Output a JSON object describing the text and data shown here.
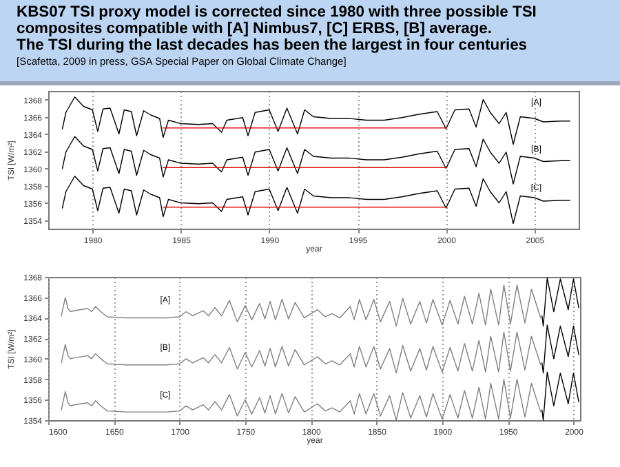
{
  "chart_data": [
    {
      "type": "line",
      "title": "KBS07 TSI proxy model is corrected since 1980 with three possible TSI composites compatible with [A] Nimbus7, [C] ERBS, [B] average.",
      "subtitle": "The TSI during the last decades has been the largest in four centuries",
      "xlabel": "year",
      "ylabel": "TSI [W/m²]",
      "annotations": [
        "[Scafetta, 2009 in press, GSA Special Paper on Global Climate Change]",
        "[A]",
        "[B]",
        "[C]"
      ],
      "xlim": [
        1977.5,
        2007.5
      ],
      "xticks": [
        1980,
        1985,
        1990,
        1995,
        2000,
        2005
      ],
      "ylim": [
        1353,
        1369
      ],
      "yticks": [
        1354,
        1356,
        1358,
        1360,
        1362,
        1364,
        1366,
        1368
      ],
      "grid": "x",
      "x": [
        1978.3,
        1978.5,
        1979.0,
        1979.5,
        1980.0,
        1980.3,
        1980.6,
        1981.0,
        1981.5,
        1981.8,
        1982.2,
        1982.5,
        1982.9,
        1983.3,
        1983.8,
        1984.0,
        1984.3,
        1985.0,
        1986.0,
        1986.8,
        1987.3,
        1987.6,
        1988.5,
        1988.8,
        1989.2,
        1990.0,
        1990.5,
        1991.0,
        1991.6,
        1992.0,
        1992.5,
        1993.5,
        1994.5,
        1995.5,
        1996.5,
        1997.5,
        1998.5,
        1999.5,
        2000.0,
        2000.5,
        2001.3,
        2001.7,
        2002.1,
        2002.5,
        2003.0,
        2003.4,
        2003.8,
        2004.2,
        2005.0,
        2005.5,
        2006.5,
        2007.0
      ],
      "series": [
        {
          "color": "#000000",
          "values": [
            1364.6,
            1366.5,
            1368.3,
            1367.2,
            1366.8,
            1364.3,
            1366.9,
            1367.0,
            1364.0,
            1366.8,
            1366.6,
            1363.8,
            1366.7,
            1366.2,
            1365.8,
            1363.6,
            1365.6,
            1365.2,
            1365.1,
            1365.2,
            1364.2,
            1365.6,
            1365.9,
            1363.8,
            1366.5,
            1366.8,
            1364.3,
            1367.0,
            1364.0,
            1366.8,
            1366.0,
            1365.8,
            1365.8,
            1365.6,
            1365.6,
            1365.9,
            1366.3,
            1366.6,
            1364.6,
            1366.8,
            1366.9,
            1364.8,
            1368.0,
            1366.5,
            1365.2,
            1366.5,
            1362.8,
            1366.0,
            1365.8,
            1365.4,
            1365.5,
            1365.5
          ]
        },
        {
          "color": "#000000",
          "values": [
            1360.0,
            1361.9,
            1363.7,
            1362.6,
            1362.2,
            1359.7,
            1362.3,
            1362.4,
            1359.4,
            1362.2,
            1362.0,
            1359.2,
            1362.1,
            1361.6,
            1361.2,
            1359.0,
            1361.0,
            1360.6,
            1360.5,
            1360.6,
            1359.6,
            1361.0,
            1361.3,
            1359.2,
            1361.9,
            1362.2,
            1359.7,
            1362.4,
            1359.4,
            1362.2,
            1361.4,
            1361.2,
            1361.2,
            1361.0,
            1361.0,
            1361.3,
            1361.7,
            1362.0,
            1360.0,
            1362.2,
            1362.3,
            1360.2,
            1363.4,
            1361.9,
            1360.6,
            1361.9,
            1358.2,
            1361.4,
            1361.2,
            1360.8,
            1360.9,
            1360.9
          ]
        },
        {
          "color": "#000000",
          "values": [
            1355.4,
            1357.3,
            1359.1,
            1358.0,
            1357.6,
            1355.1,
            1357.7,
            1357.8,
            1354.8,
            1357.6,
            1357.4,
            1354.6,
            1357.5,
            1357.0,
            1356.6,
            1354.4,
            1356.4,
            1356.0,
            1355.9,
            1356.0,
            1355.0,
            1356.4,
            1356.7,
            1354.6,
            1357.3,
            1357.6,
            1355.1,
            1357.8,
            1354.8,
            1357.6,
            1356.8,
            1356.6,
            1356.6,
            1356.4,
            1356.4,
            1356.7,
            1357.1,
            1357.4,
            1355.4,
            1357.6,
            1357.7,
            1355.6,
            1358.8,
            1357.3,
            1356.0,
            1357.3,
            1353.6,
            1356.8,
            1356.6,
            1356.2,
            1356.3,
            1356.3
          ]
        },
        {
          "color": "#e01010",
          "x": [
            1984,
            2000
          ],
          "values": [
            1364.7,
            1364.7
          ]
        },
        {
          "color": "#e01010",
          "x": [
            1984,
            2000
          ],
          "values": [
            1360.1,
            1360.1
          ]
        },
        {
          "color": "#e01010",
          "x": [
            1984,
            2000
          ],
          "values": [
            1355.5,
            1355.5
          ]
        }
      ]
    },
    {
      "type": "line",
      "xlabel": "year",
      "ylabel": "TSI [W/m²]",
      "annotations": [
        "[A]",
        "[B]",
        "[C]"
      ],
      "xlim": [
        1600,
        2005
      ],
      "xticks": [
        1600,
        1650,
        1700,
        1750,
        1800,
        1850,
        1900,
        1950,
        2000
      ],
      "ylim": [
        1354,
        1368
      ],
      "yticks": [
        1354,
        1356,
        1358,
        1360,
        1362,
        1364,
        1366,
        1368
      ],
      "grid": "x",
      "x": [
        1610,
        1611,
        1613,
        1615,
        1617,
        1620,
        1625,
        1630,
        1633,
        1636,
        1640,
        1645,
        1660,
        1690,
        1700,
        1705,
        1710,
        1718,
        1722,
        1727,
        1732,
        1738,
        1744,
        1750,
        1755,
        1761,
        1765,
        1769,
        1773,
        1778,
        1783,
        1788,
        1795,
        1805,
        1811,
        1816,
        1822,
        1830,
        1833,
        1837,
        1842,
        1848,
        1853,
        1860,
        1865,
        1870,
        1876,
        1883,
        1888,
        1893,
        1900,
        1906,
        1912,
        1917,
        1923,
        1928,
        1933,
        1937,
        1943,
        1947,
        1952,
        1957,
        1963,
        1968,
        1975
      ],
      "series": [
        {
          "color": "#808080",
          "values": [
            1364.2,
            1364.8,
            1366.0,
            1364.9,
            1364.6,
            1364.7,
            1364.8,
            1364.9,
            1364.6,
            1365.1,
            1364.6,
            1364.1,
            1364.0,
            1364.0,
            1364.1,
            1364.6,
            1364.2,
            1364.7,
            1364.2,
            1365.0,
            1364.2,
            1365.7,
            1363.6,
            1365.2,
            1363.8,
            1365.4,
            1363.9,
            1365.6,
            1363.8,
            1365.8,
            1363.9,
            1365.5,
            1364.0,
            1364.8,
            1364.1,
            1364.4,
            1364.0,
            1365.1,
            1363.8,
            1365.8,
            1363.8,
            1365.8,
            1363.6,
            1365.6,
            1363.2,
            1365.9,
            1363.4,
            1365.6,
            1363.5,
            1365.8,
            1363.3,
            1365.7,
            1363.4,
            1366.1,
            1363.4,
            1366.4,
            1363.3,
            1366.8,
            1363.3,
            1367.2,
            1363.4,
            1367.2,
            1363.5,
            1366.8,
            1364.0
          ]
        },
        {
          "color": "#808080",
          "values": [
            1359.6,
            1360.2,
            1361.4,
            1360.3,
            1360.0,
            1360.1,
            1360.2,
            1360.3,
            1360.0,
            1360.5,
            1360.0,
            1359.5,
            1359.4,
            1359.4,
            1359.5,
            1360.0,
            1359.6,
            1360.1,
            1359.6,
            1360.4,
            1359.6,
            1361.1,
            1359.0,
            1360.6,
            1359.2,
            1360.8,
            1359.3,
            1361.0,
            1359.2,
            1361.2,
            1359.3,
            1360.9,
            1359.4,
            1360.2,
            1359.5,
            1359.8,
            1359.4,
            1360.5,
            1359.2,
            1361.2,
            1359.2,
            1361.2,
            1359.0,
            1361.0,
            1358.6,
            1361.3,
            1358.8,
            1361.0,
            1358.9,
            1361.2,
            1358.7,
            1361.1,
            1358.8,
            1361.5,
            1358.8,
            1361.8,
            1358.7,
            1362.2,
            1358.7,
            1362.6,
            1358.8,
            1362.6,
            1358.9,
            1362.2,
            1359.4
          ]
        },
        {
          "color": "#808080",
          "values": [
            1355.0,
            1355.6,
            1356.8,
            1355.7,
            1355.4,
            1355.5,
            1355.6,
            1355.7,
            1355.4,
            1355.9,
            1355.4,
            1354.9,
            1354.8,
            1354.8,
            1354.9,
            1355.4,
            1355.0,
            1355.5,
            1355.0,
            1355.8,
            1355.0,
            1356.5,
            1354.4,
            1356.0,
            1354.6,
            1356.2,
            1354.7,
            1356.4,
            1354.6,
            1356.6,
            1354.7,
            1356.3,
            1354.8,
            1355.6,
            1354.9,
            1355.2,
            1354.8,
            1355.9,
            1354.6,
            1356.6,
            1354.6,
            1356.6,
            1354.4,
            1356.4,
            1354.0,
            1356.7,
            1354.2,
            1356.4,
            1354.3,
            1356.6,
            1354.1,
            1356.5,
            1354.2,
            1356.9,
            1354.2,
            1357.2,
            1354.1,
            1357.6,
            1354.1,
            1358.0,
            1354.2,
            1358.0,
            1354.3,
            1357.6,
            1354.8
          ]
        },
        {
          "color": "#000000",
          "x": [
            1976,
            1977,
            1980,
            1985,
            1990,
            1996,
            2000,
            2004
          ],
          "values": [
            1364.2,
            1363.2,
            1367.9,
            1364.6,
            1367.8,
            1364.8,
            1367.8,
            1365.0
          ]
        },
        {
          "color": "#000000",
          "x": [
            1976,
            1977,
            1980,
            1985,
            1990,
            1996,
            2000,
            2004
          ],
          "values": [
            1359.6,
            1358.6,
            1363.3,
            1360.0,
            1363.2,
            1360.2,
            1363.2,
            1360.4
          ]
        },
        {
          "color": "#000000",
          "x": [
            1976,
            1977,
            1980,
            1985,
            1990,
            1996,
            2000,
            2004
          ],
          "values": [
            1355.0,
            1354.0,
            1358.7,
            1355.4,
            1358.6,
            1355.6,
            1358.6,
            1355.8
          ]
        }
      ]
    }
  ]
}
